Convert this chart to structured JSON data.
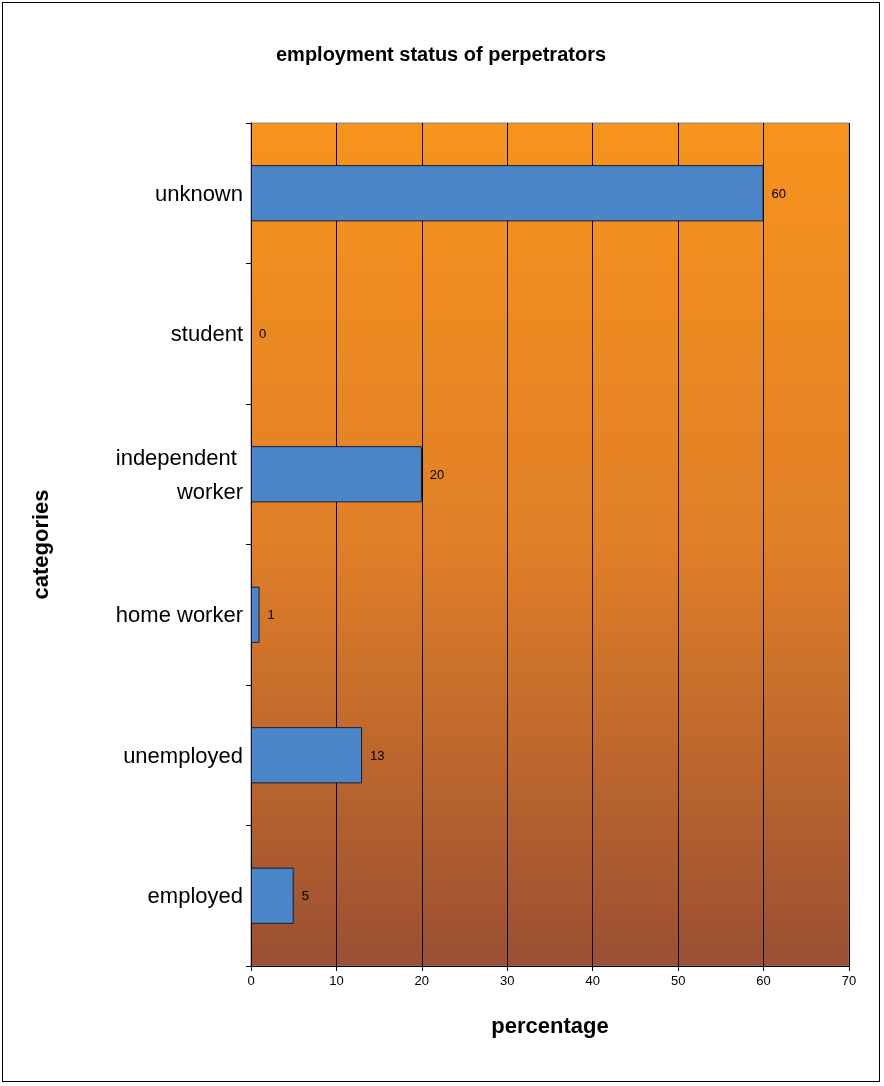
{
  "chart_data": {
    "type": "bar",
    "orientation": "horizontal",
    "title": "employment status of perpetrators",
    "xlabel": "percentage",
    "ylabel": "categories",
    "categories": [
      "unknown",
      "student",
      "independent worker",
      "home worker",
      "unemployed",
      "employed"
    ],
    "values": [
      60,
      0,
      20,
      1,
      13,
      5
    ],
    "color": "#4a86c8",
    "xlim": [
      0,
      70
    ],
    "xticks": [
      0,
      10,
      20,
      30,
      40,
      50,
      60,
      70
    ],
    "grid": "x",
    "data_labels": true
  }
}
